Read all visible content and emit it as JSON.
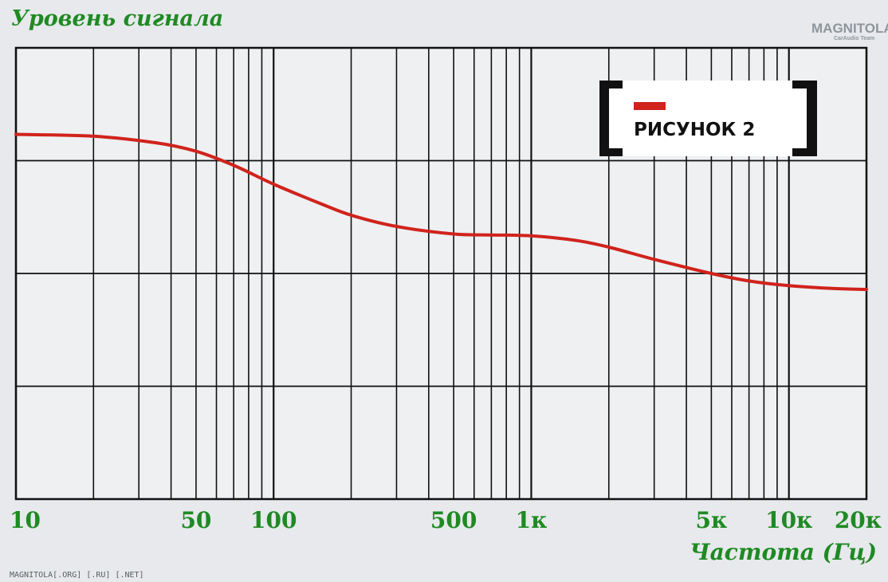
{
  "chart_data": {
    "type": "line",
    "title": "Уровень сигнала",
    "xlabel": "Частота (Гц)",
    "ylabel": "",
    "x_scale": "log",
    "xlim": [
      10,
      20000
    ],
    "grid": true,
    "x_tick_labels": [
      {
        "value": 10,
        "label": "10"
      },
      {
        "value": 50,
        "label": "50"
      },
      {
        "value": 100,
        "label": "100"
      },
      {
        "value": 500,
        "label": "500"
      },
      {
        "value": 1000,
        "label": "1к"
      },
      {
        "value": 5000,
        "label": "5к"
      },
      {
        "value": 10000,
        "label": "10к"
      },
      {
        "value": 20000,
        "label": "20к"
      }
    ],
    "series": [
      {
        "color": "#d0231c",
        "x": [
          10,
          20,
          35,
          50,
          70,
          100,
          150,
          200,
          300,
          500,
          700,
          1000,
          1500,
          2000,
          3000,
          5000,
          7000,
          10000,
          15000,
          20000
        ],
        "y": [
          1.08,
          1.06,
          0.99,
          0.9,
          0.75,
          0.55,
          0.35,
          0.22,
          0.1,
          0.02,
          0.01,
          0.0,
          -0.05,
          -0.12,
          -0.25,
          -0.4,
          -0.48,
          -0.53,
          -0.56,
          -0.57
        ]
      }
    ],
    "ylim": [
      -2.8,
      2.0
    ]
  },
  "badge": {
    "text": "РИСУНОК 2"
  },
  "logo": {
    "text": "MAGNITOLA",
    "subtext": "CarAudio Team"
  },
  "credit": "MAGNITOLA[.ORG] [.RU] [.NET]"
}
